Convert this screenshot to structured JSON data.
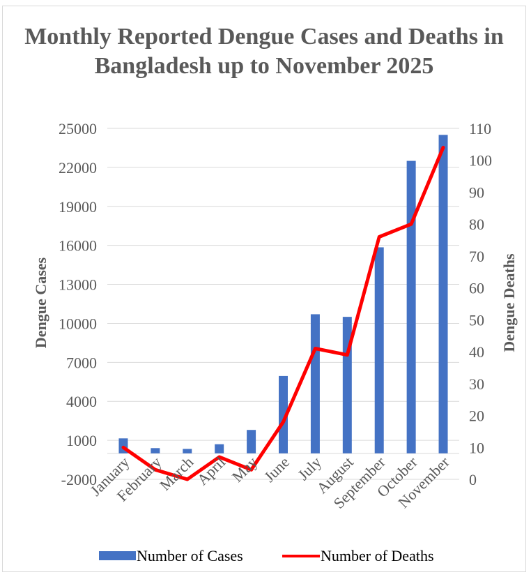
{
  "chart_data": {
    "type": "bar",
    "title": "Monthly Reported Dengue Cases and Deaths in Bangladesh up to November 2025",
    "categories": [
      "January",
      "February",
      "March",
      "April",
      "May",
      "June",
      "July",
      "August",
      "September",
      "October",
      "November"
    ],
    "series": [
      {
        "name": "Number of Cases",
        "type": "bar",
        "axis": "left",
        "color": "#4472c4",
        "values": [
          1150,
          400,
          340,
          700,
          1800,
          5950,
          10700,
          10500,
          15850,
          22500,
          24500
        ]
      },
      {
        "name": "Number of Deaths",
        "type": "line",
        "axis": "right",
        "color": "#ff0000",
        "values": [
          10,
          3,
          0,
          7,
          3,
          18,
          41,
          39,
          76,
          80,
          104
        ]
      }
    ],
    "ylabel": "Dengue Cases",
    "ylabel_right": "Dengue Deaths",
    "ylim": [
      -2000,
      25000
    ],
    "ylim_right": [
      0,
      110
    ],
    "yticks": [
      "-2000",
      "1000",
      "4000",
      "7000",
      "10000",
      "13000",
      "16000",
      "19000",
      "22000",
      "25000"
    ],
    "yticks_right": [
      "0",
      "10",
      "20",
      "30",
      "40",
      "50",
      "60",
      "70",
      "80",
      "90",
      "100",
      "110"
    ],
    "grid": true,
    "legend_position": "bottom"
  }
}
